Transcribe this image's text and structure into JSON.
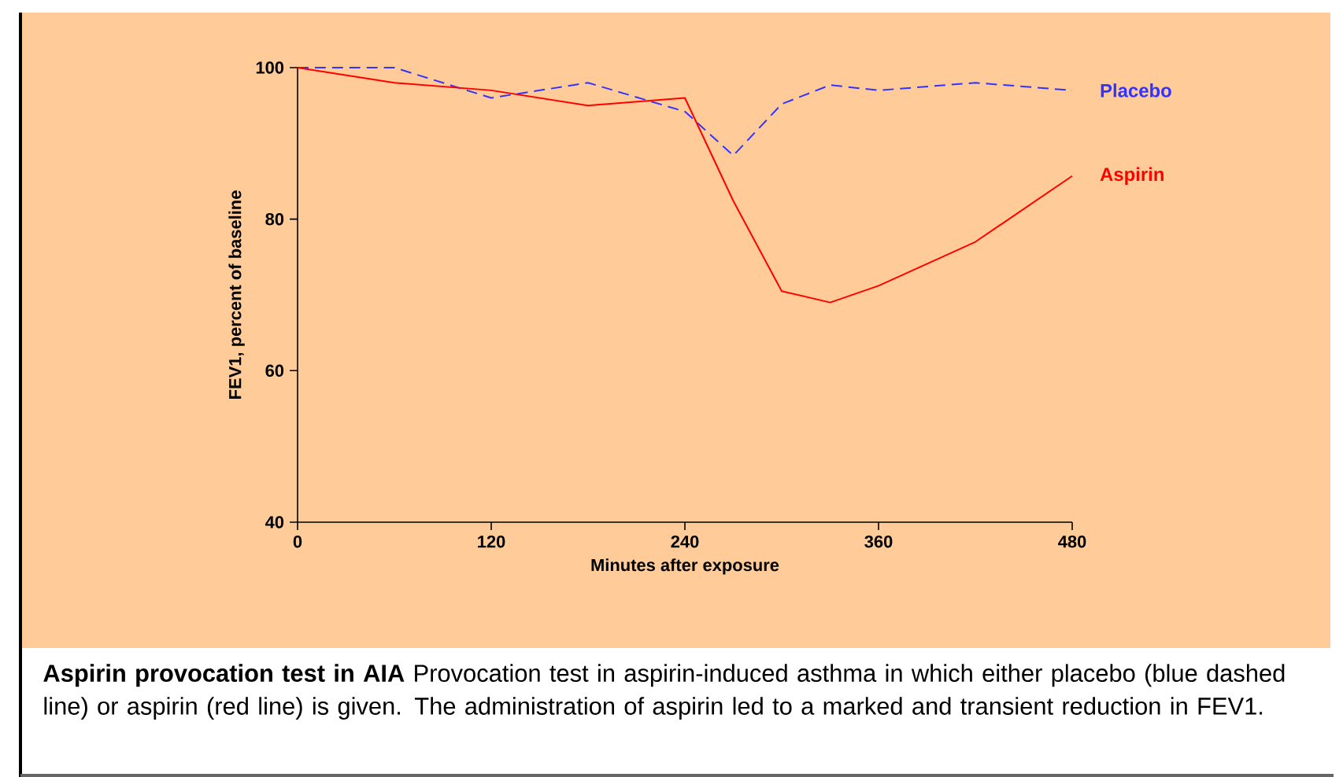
{
  "chart_data": {
    "type": "line",
    "xlabel": "Minutes after exposure",
    "ylabel": "FEV1, percent of baseline",
    "x": [
      0,
      60,
      120,
      180,
      240,
      270,
      300,
      330,
      360,
      420,
      480
    ],
    "series": [
      {
        "name": "Placebo",
        "color": "#3333ff",
        "line_style": "dashed",
        "values": [
          100,
          100,
          96,
          98,
          94.2,
          88.4,
          95.2,
          97.7,
          97,
          98,
          97
        ]
      },
      {
        "name": "Aspirin",
        "color": "#ff0000",
        "line_style": "solid",
        "values": [
          100,
          98,
          97,
          95,
          96,
          82.4,
          70.5,
          69,
          71.2,
          77,
          85.7
        ]
      }
    ],
    "xlim": [
      0,
      480
    ],
    "xticks": [
      0,
      120,
      240,
      360,
      480
    ],
    "ylim": [
      40,
      100
    ],
    "yticks": [
      40,
      60,
      80,
      100
    ],
    "grid": false,
    "legend": false,
    "marker": "none",
    "annotations": [
      "**Aspirin provocation test in AIA**  Provocation test in aspirin-induced asthma in which either placebo (blue dashed line) or aspirin (red line) is given. The administration of aspirin led to a marked and transient reduction in FEV1."
    ]
  }
}
